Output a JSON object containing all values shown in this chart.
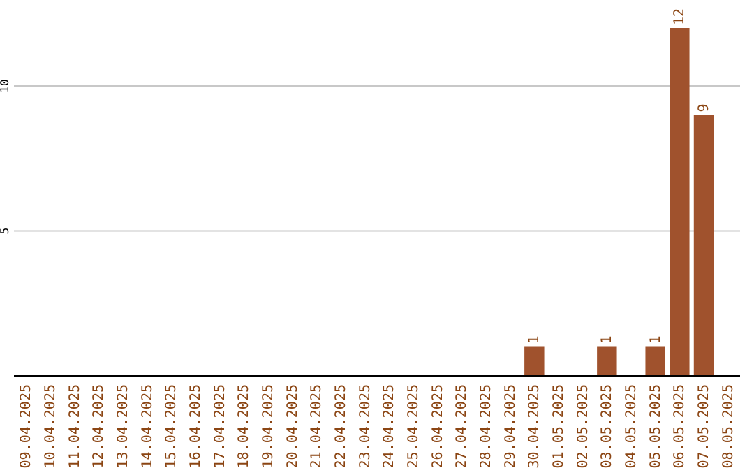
{
  "chart_data": {
    "type": "bar",
    "categories": [
      "09.04.2025",
      "10.04.2025",
      "11.04.2025",
      "12.04.2025",
      "13.04.2025",
      "14.04.2025",
      "15.04.2025",
      "16.04.2025",
      "17.04.2025",
      "18.04.2025",
      "19.04.2025",
      "20.04.2025",
      "21.04.2025",
      "22.04.2025",
      "23.04.2025",
      "24.04.2025",
      "25.04.2025",
      "26.04.2025",
      "27.04.2025",
      "28.04.2025",
      "29.04.2025",
      "30.04.2025",
      "01.05.2025",
      "02.05.2025",
      "03.05.2025",
      "04.05.2025",
      "05.05.2025",
      "06.05.2025",
      "07.05.2025",
      "08.05.2025"
    ],
    "values": [
      0,
      0,
      0,
      0,
      0,
      0,
      0,
      0,
      0,
      0,
      0,
      0,
      0,
      0,
      0,
      0,
      0,
      0,
      0,
      0,
      0,
      1,
      0,
      0,
      1,
      0,
      1,
      12,
      9,
      0
    ],
    "value_labels": [
      null,
      null,
      null,
      null,
      null,
      null,
      null,
      null,
      null,
      null,
      null,
      null,
      null,
      null,
      null,
      null,
      null,
      null,
      null,
      null,
      null,
      "1",
      null,
      null,
      "1",
      null,
      "1",
      "12",
      "9",
      null
    ],
    "color": "#a0522d",
    "ylim": [
      0,
      12
    ],
    "yticks": [
      5,
      10
    ],
    "grid": "y"
  }
}
